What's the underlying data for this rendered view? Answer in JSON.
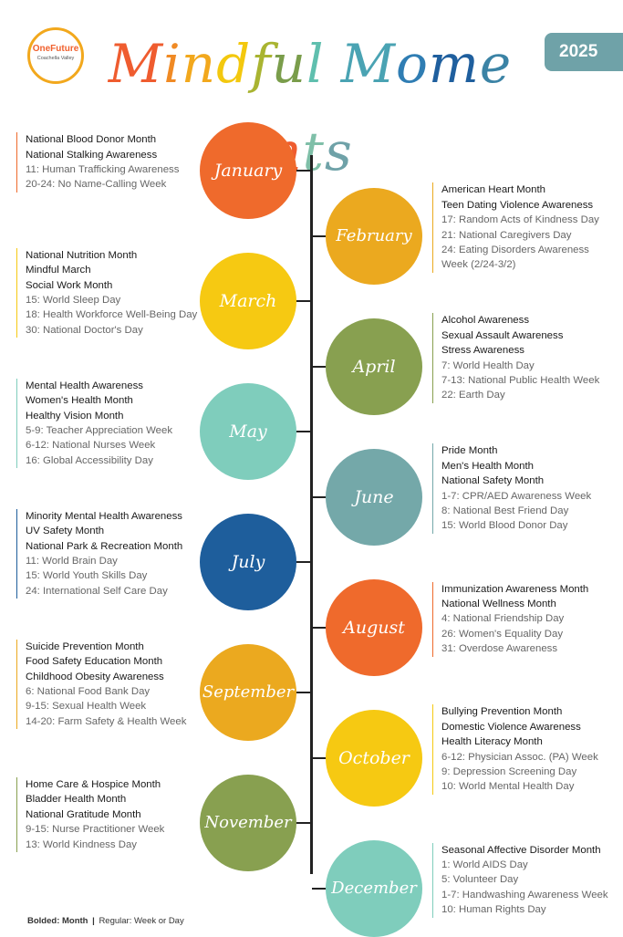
{
  "logo": {
    "name": "OneFuture",
    "subtitle": "Coachella Valley"
  },
  "title": "Mindful Moments",
  "title_colors": [
    "#ef5c2f",
    "#f08a24",
    "#f2a81d",
    "#f3c80e",
    "#a9b431",
    "#7a9d4b",
    "#5fbfae",
    "#4aa3b3",
    "#2f7db3",
    "#1f5f9e",
    "#3b83a5",
    "#ef5c2f",
    "#7fbfa8",
    "#6fa2a8"
  ],
  "year": "2025",
  "months": [
    {
      "name": "January",
      "color": "#ef6a2c",
      "side": "left",
      "events": [
        {
          "text": "National Blood Donor Month",
          "kind": "month"
        },
        {
          "text": "National Stalking Awareness",
          "kind": "month"
        },
        {
          "text": "11: Human Trafficking Awareness",
          "kind": "day"
        },
        {
          "text": "20-24: No Name-Calling Week",
          "kind": "day"
        }
      ]
    },
    {
      "name": "February",
      "color": "#eba91f",
      "side": "right",
      "events": [
        {
          "text": "American Heart Month",
          "kind": "month"
        },
        {
          "text": "Teen Dating Violence Awareness",
          "kind": "month"
        },
        {
          "text": "17: Random Acts of Kindness Day",
          "kind": "day"
        },
        {
          "text": "21: National Caregivers Day",
          "kind": "day"
        },
        {
          "text": "24: Eating Disorders Awareness",
          "kind": "day"
        },
        {
          "text": "Week (2/24-3/2)",
          "kind": "day"
        }
      ]
    },
    {
      "name": "March",
      "color": "#f6c912",
      "side": "left",
      "events": [
        {
          "text": "National Nutrition Month",
          "kind": "month"
        },
        {
          "text": "Mindful March",
          "kind": "month"
        },
        {
          "text": "Social Work Month",
          "kind": "month"
        },
        {
          "text": "15: World Sleep Day",
          "kind": "day"
        },
        {
          "text": "18: Health Workforce Well-Being Day",
          "kind": "day"
        },
        {
          "text": "30: National Doctor's Day",
          "kind": "day"
        }
      ]
    },
    {
      "name": "April",
      "color": "#88a050",
      "side": "right",
      "events": [
        {
          "text": "Alcohol Awareness",
          "kind": "month"
        },
        {
          "text": "Sexual Assault Awareness",
          "kind": "month"
        },
        {
          "text": "Stress Awareness",
          "kind": "month"
        },
        {
          "text": "7: World Health Day",
          "kind": "day"
        },
        {
          "text": "7-13: National Public Health Week",
          "kind": "day"
        },
        {
          "text": "22: Earth Day",
          "kind": "day"
        }
      ]
    },
    {
      "name": "May",
      "color": "#7fcdbc",
      "side": "left",
      "events": [
        {
          "text": "Mental Health Awareness",
          "kind": "month"
        },
        {
          "text": "Women's Health Month",
          "kind": "month"
        },
        {
          "text": "Healthy Vision Month",
          "kind": "month"
        },
        {
          "text": "5-9: Teacher Appreciation Week",
          "kind": "day"
        },
        {
          "text": "6-12: National Nurses Week",
          "kind": "day"
        },
        {
          "text": "16: Global Accessibility Day",
          "kind": "day"
        }
      ]
    },
    {
      "name": "June",
      "color": "#74a8a9",
      "side": "right",
      "events": [
        {
          "text": "Pride Month",
          "kind": "month"
        },
        {
          "text": "Men's Health Month",
          "kind": "month"
        },
        {
          "text": "National Safety Month",
          "kind": "month"
        },
        {
          "text": "1-7: CPR/AED Awareness Week",
          "kind": "day"
        },
        {
          "text": "8: National Best Friend Day",
          "kind": "day"
        },
        {
          "text": "15: World Blood Donor Day",
          "kind": "day"
        }
      ]
    },
    {
      "name": "July",
      "color": "#1e5e9c",
      "side": "left",
      "events": [
        {
          "text": "Minority Mental Health Awareness",
          "kind": "month"
        },
        {
          "text": "UV Safety Month",
          "kind": "month"
        },
        {
          "text": "National Park & Recreation Month",
          "kind": "month"
        },
        {
          "text": "11: World Brain Day",
          "kind": "day"
        },
        {
          "text": "15: World Youth Skills Day",
          "kind": "day"
        },
        {
          "text": "24: International Self Care Day",
          "kind": "day"
        }
      ]
    },
    {
      "name": "August",
      "color": "#ef6a2c",
      "side": "right",
      "events": [
        {
          "text": "Immunization Awareness Month",
          "kind": "month"
        },
        {
          "text": "National Wellness Month",
          "kind": "month"
        },
        {
          "text": "4: National Friendship Day",
          "kind": "day"
        },
        {
          "text": "26: Women's Equality Day",
          "kind": "day"
        },
        {
          "text": "31: Overdose Awareness",
          "kind": "day"
        }
      ]
    },
    {
      "name": "September",
      "color": "#eba91f",
      "side": "left",
      "events": [
        {
          "text": "Suicide Prevention Month",
          "kind": "month"
        },
        {
          "text": "Food Safety Education Month",
          "kind": "month"
        },
        {
          "text": "Childhood Obesity Awareness",
          "kind": "month"
        },
        {
          "text": "6: National Food Bank Day",
          "kind": "day"
        },
        {
          "text": "9-15: Sexual Health Week",
          "kind": "day"
        },
        {
          "text": "14-20: Farm Safety & Health Week",
          "kind": "day"
        }
      ]
    },
    {
      "name": "October",
      "color": "#f6c912",
      "side": "right",
      "events": [
        {
          "text": "Bullying Prevention Month",
          "kind": "month"
        },
        {
          "text": "Domestic Violence Awareness",
          "kind": "month"
        },
        {
          "text": "Health Literacy Month",
          "kind": "month"
        },
        {
          "text": "6-12: Physician Assoc. (PA) Week",
          "kind": "day"
        },
        {
          "text": "9: Depression Screening Day",
          "kind": "day"
        },
        {
          "text": "10: World Mental Health Day",
          "kind": "day"
        }
      ]
    },
    {
      "name": "November",
      "color": "#88a050",
      "side": "left",
      "events": [
        {
          "text": "Home Care & Hospice Month",
          "kind": "month"
        },
        {
          "text": "Bladder Health Month",
          "kind": "month"
        },
        {
          "text": "National Gratitude Month",
          "kind": "month"
        },
        {
          "text": "9-15: Nurse Practitioner Week",
          "kind": "day"
        },
        {
          "text": "13: World Kindness Day",
          "kind": "day"
        }
      ]
    },
    {
      "name": "December",
      "color": "#7fcdbc",
      "side": "right",
      "events": [
        {
          "text": "Seasonal Affective Disorder Month",
          "kind": "month"
        },
        {
          "text": "1: World AIDS Day",
          "kind": "day"
        },
        {
          "text": "5: Volunteer Day",
          "kind": "day"
        },
        {
          "text": "1-7: Handwashing Awareness Week",
          "kind": "day"
        },
        {
          "text": "10: Human Rights Day",
          "kind": "day"
        }
      ]
    }
  ],
  "footnote": {
    "bold": "Bolded: Month",
    "sep": "|",
    "regular": "Regular: Week or Day"
  }
}
